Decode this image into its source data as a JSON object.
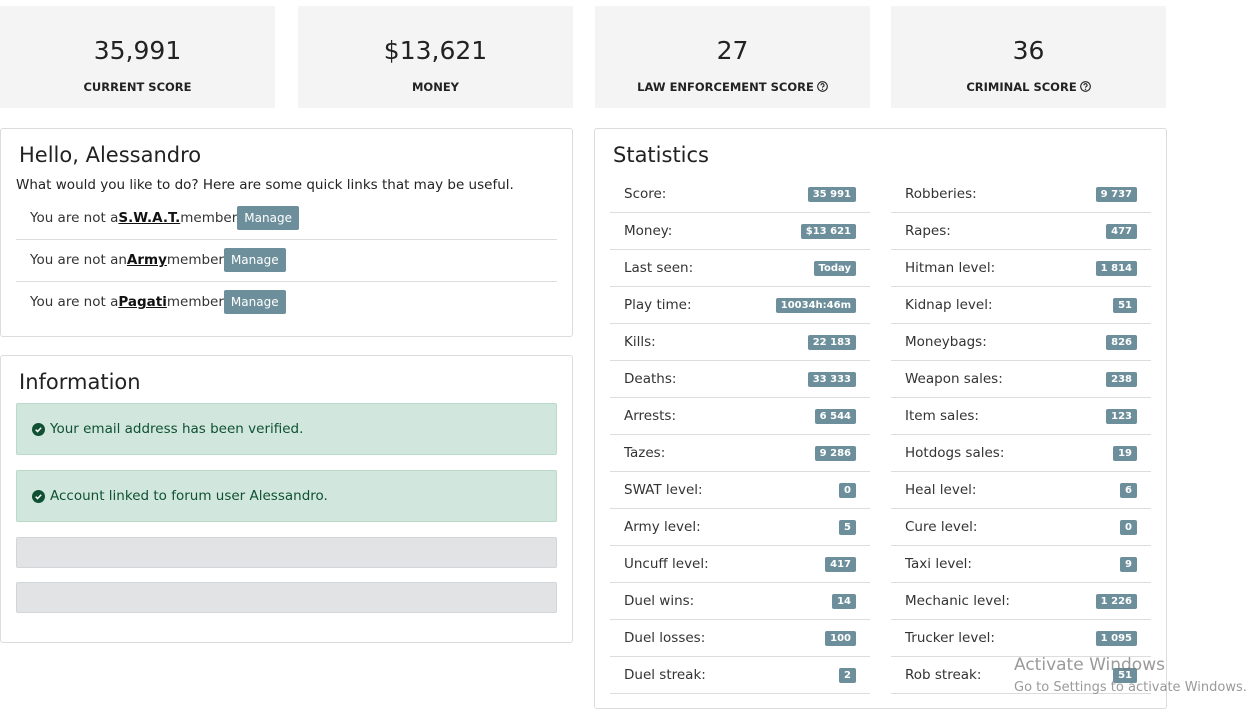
{
  "summary": [
    {
      "value": "35,991",
      "label": "CURRENT SCORE"
    },
    {
      "value": "$13,621",
      "label": "MONEY"
    },
    {
      "value": "27",
      "label": "LAW ENFORCEMENT SCORE"
    },
    {
      "value": "36",
      "label": "CRIMINAL SCORE"
    }
  ],
  "hello": {
    "title": "Hello, Alessandro",
    "intro": "What would you like to do? Here are some quick links that may be useful.",
    "rows": [
      {
        "prefix": "You are not a",
        "group": "S.W.A.T.",
        "suffix": "member",
        "button": "Manage"
      },
      {
        "prefix": "You are not an",
        "group": "Army",
        "suffix": "member",
        "button": "Manage"
      },
      {
        "prefix": "You are not a",
        "group": "Pagati",
        "suffix": "member",
        "button": "Manage"
      }
    ]
  },
  "information": {
    "title": "Information",
    "alerts": [
      "Your email address has been verified.",
      "Account linked to forum user Alessandro."
    ]
  },
  "statistics": {
    "title": "Statistics",
    "left": [
      {
        "label": "Score:",
        "value": "35 991"
      },
      {
        "label": "Money:",
        "value": "$13 621"
      },
      {
        "label": "Last seen:",
        "value": "Today"
      },
      {
        "label": "Play time:",
        "value": "10034h:46m"
      },
      {
        "label": "Kills:",
        "value": "22 183"
      },
      {
        "label": "Deaths:",
        "value": "33 333"
      },
      {
        "label": "Arrests:",
        "value": "6 544"
      },
      {
        "label": "Tazes:",
        "value": "9 286"
      },
      {
        "label": "SWAT level:",
        "value": "0"
      },
      {
        "label": "Army level:",
        "value": "5"
      },
      {
        "label": "Uncuff level:",
        "value": "417"
      },
      {
        "label": "Duel wins:",
        "value": "14"
      },
      {
        "label": "Duel losses:",
        "value": "100"
      },
      {
        "label": "Duel streak:",
        "value": "2"
      }
    ],
    "right": [
      {
        "label": "Robberies:",
        "value": "9 737"
      },
      {
        "label": "Rapes:",
        "value": "477"
      },
      {
        "label": "Hitman level:",
        "value": "1 814"
      },
      {
        "label": "Kidnap level:",
        "value": "51"
      },
      {
        "label": "Moneybags:",
        "value": "826"
      },
      {
        "label": "Weapon sales:",
        "value": "238"
      },
      {
        "label": "Item sales:",
        "value": "123"
      },
      {
        "label": "Hotdogs sales:",
        "value": "19"
      },
      {
        "label": "Heal level:",
        "value": "6"
      },
      {
        "label": "Cure level:",
        "value": "0"
      },
      {
        "label": "Taxi level:",
        "value": "9"
      },
      {
        "label": "Mechanic level:",
        "value": "1 226"
      },
      {
        "label": "Trucker level:",
        "value": "1 095"
      },
      {
        "label": "Rob streak:",
        "value": "51"
      }
    ]
  },
  "watermark": {
    "line1": "Activate Windows",
    "line2": "Go to Settings to activate Windows."
  }
}
